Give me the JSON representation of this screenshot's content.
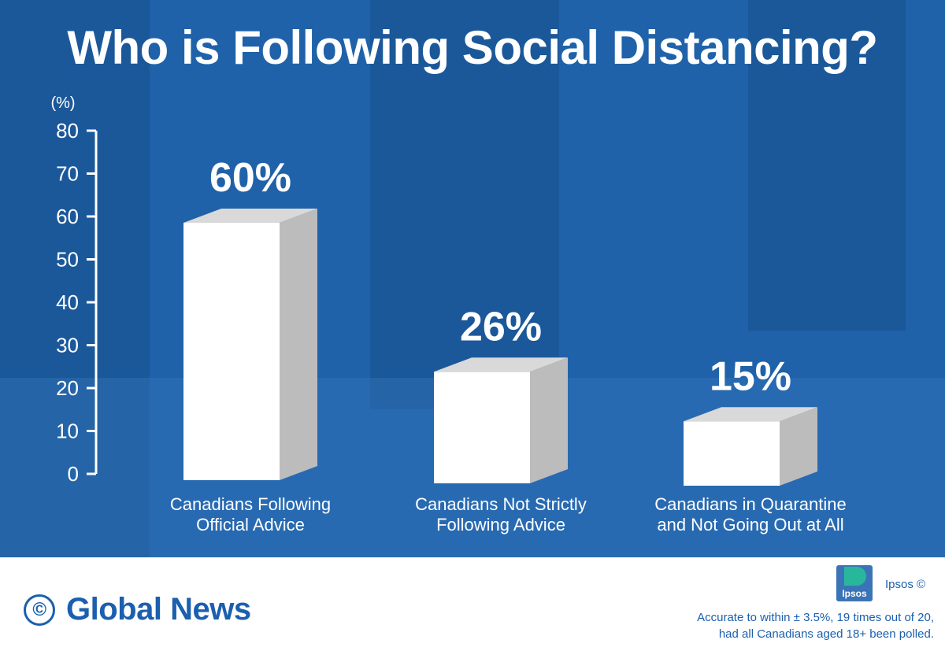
{
  "title": "Who is Following Social Distancing?",
  "chart_data": {
    "type": "bar",
    "title": "Who is Following Social Distancing?",
    "ylabel": "(%)",
    "ylim": [
      0,
      80
    ],
    "yticks": [
      0,
      10,
      20,
      30,
      40,
      50,
      60,
      70,
      80
    ],
    "categories": [
      [
        "Canadians Following",
        "Official Advice"
      ],
      [
        "Canadians Not Strictly",
        "Following Advice"
      ],
      [
        "Canadians in Quarantine",
        "and Not Going Out at All"
      ]
    ],
    "values": [
      60,
      26,
      15
    ],
    "value_labels": [
      "60%",
      "26%",
      "15%"
    ],
    "grid": false,
    "legend": "none",
    "bar_style": "3d-box"
  },
  "colors": {
    "panel": "#1f62a9",
    "bar_front": "#ffffff",
    "bar_top": "#d9d9d9",
    "bar_side": "#bcbcbc",
    "brand": "#1b5fae"
  },
  "footer": {
    "copyright_symbol": "©",
    "brand": "Global News",
    "ipsos_logo_text": "Ipsos",
    "ipsos_credit": "Ipsos ©",
    "note_line1": "Accurate to within ± 3.5%, 19 times out of 20,",
    "note_line2": "had all Canadians aged 18+ been polled."
  }
}
